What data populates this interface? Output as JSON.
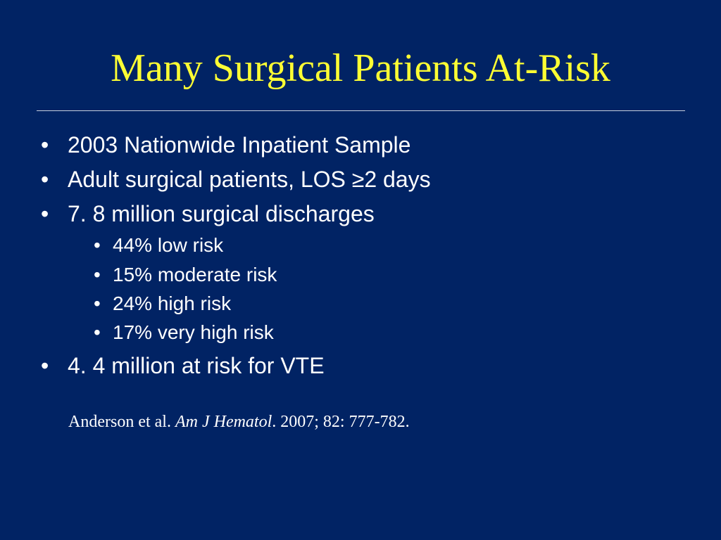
{
  "slide": {
    "title": "Many Surgical Patients At-Risk",
    "bullet_glyph": "•",
    "bullets": [
      {
        "text": "2003 Nationwide Inpatient Sample"
      },
      {
        "text": "Adult surgical patients, LOS ≥2 days"
      },
      {
        "text": "7. 8 million surgical discharges"
      }
    ],
    "sub_bullets": [
      {
        "text": "44% low risk"
      },
      {
        "text": "15% moderate risk"
      },
      {
        "text": "24% high risk"
      },
      {
        "text": "17% very high risk"
      }
    ],
    "final_bullet": {
      "text": "4. 4 million at risk for VTE"
    },
    "citation": {
      "authors": "Anderson et al.",
      "journal": "Am J Hematol",
      "details": ". 2007; 82: 777-782."
    }
  },
  "colors": {
    "background": "#012364",
    "title": "#FFFF33",
    "text": "#FFFFFF",
    "rule": "#C9CFDD"
  }
}
